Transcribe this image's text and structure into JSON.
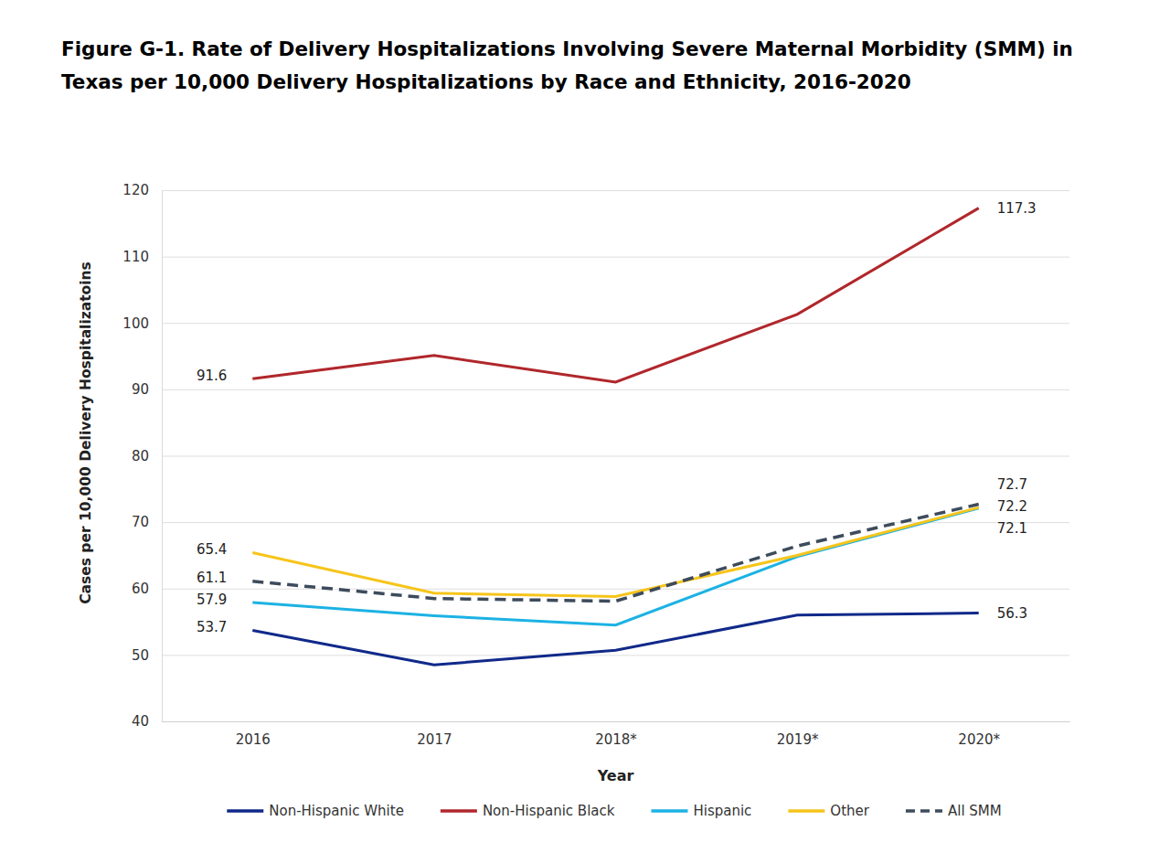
{
  "chart_data": {
    "type": "line",
    "title": "Figure G-1. Rate of Delivery Hospitalizations Involving Severe Maternal Morbidity (SMM) in Texas per 10,000 Delivery Hospitalizations by Race and Ethnicity, 2016-2020",
    "x_label": "Year",
    "y_label": "Cases per 10,000 Delivery Hospitalizatoins",
    "categories": [
      "2016",
      "2017",
      "2018*",
      "2019*",
      "2020*"
    ],
    "ylim": [
      40,
      120
    ],
    "yticks": [
      40,
      50,
      60,
      70,
      80,
      90,
      100,
      110,
      120
    ],
    "grid": true,
    "legend": "bottom",
    "data_labels": true,
    "series": [
      {
        "name": "Non-Hispanic White",
        "color": "#10298a",
        "line_style": "solid",
        "values": [
          53.7,
          48.5,
          50.7,
          56.0,
          56.3
        ],
        "value_labels": [
          "53.7",
          null,
          null,
          null,
          "56.3"
        ]
      },
      {
        "name": "Non-Hispanic Black",
        "color": "#b0272b",
        "line_style": "solid",
        "values": [
          91.6,
          95.1,
          91.1,
          101.3,
          117.3
        ],
        "value_labels": [
          "91.6",
          null,
          null,
          null,
          "117.3"
        ]
      },
      {
        "name": "Hispanic",
        "color": "#1cb2e4",
        "line_style": "solid",
        "values": [
          57.9,
          55.9,
          54.5,
          64.8,
          72.1
        ],
        "value_labels": [
          "57.9",
          null,
          null,
          null,
          "72.1"
        ]
      },
      {
        "name": "Other",
        "color": "#f6c51b",
        "line_style": "solid",
        "values": [
          65.4,
          59.3,
          58.8,
          65.0,
          72.2
        ],
        "value_labels": [
          "65.4",
          null,
          null,
          null,
          "72.2"
        ]
      },
      {
        "name": "All SMM",
        "color": "#3d4b5c",
        "line_style": "dashed",
        "values": [
          61.1,
          58.5,
          58.1,
          66.4,
          72.7
        ],
        "value_labels": [
          "61.1",
          null,
          null,
          null,
          "72.7"
        ]
      }
    ]
  }
}
